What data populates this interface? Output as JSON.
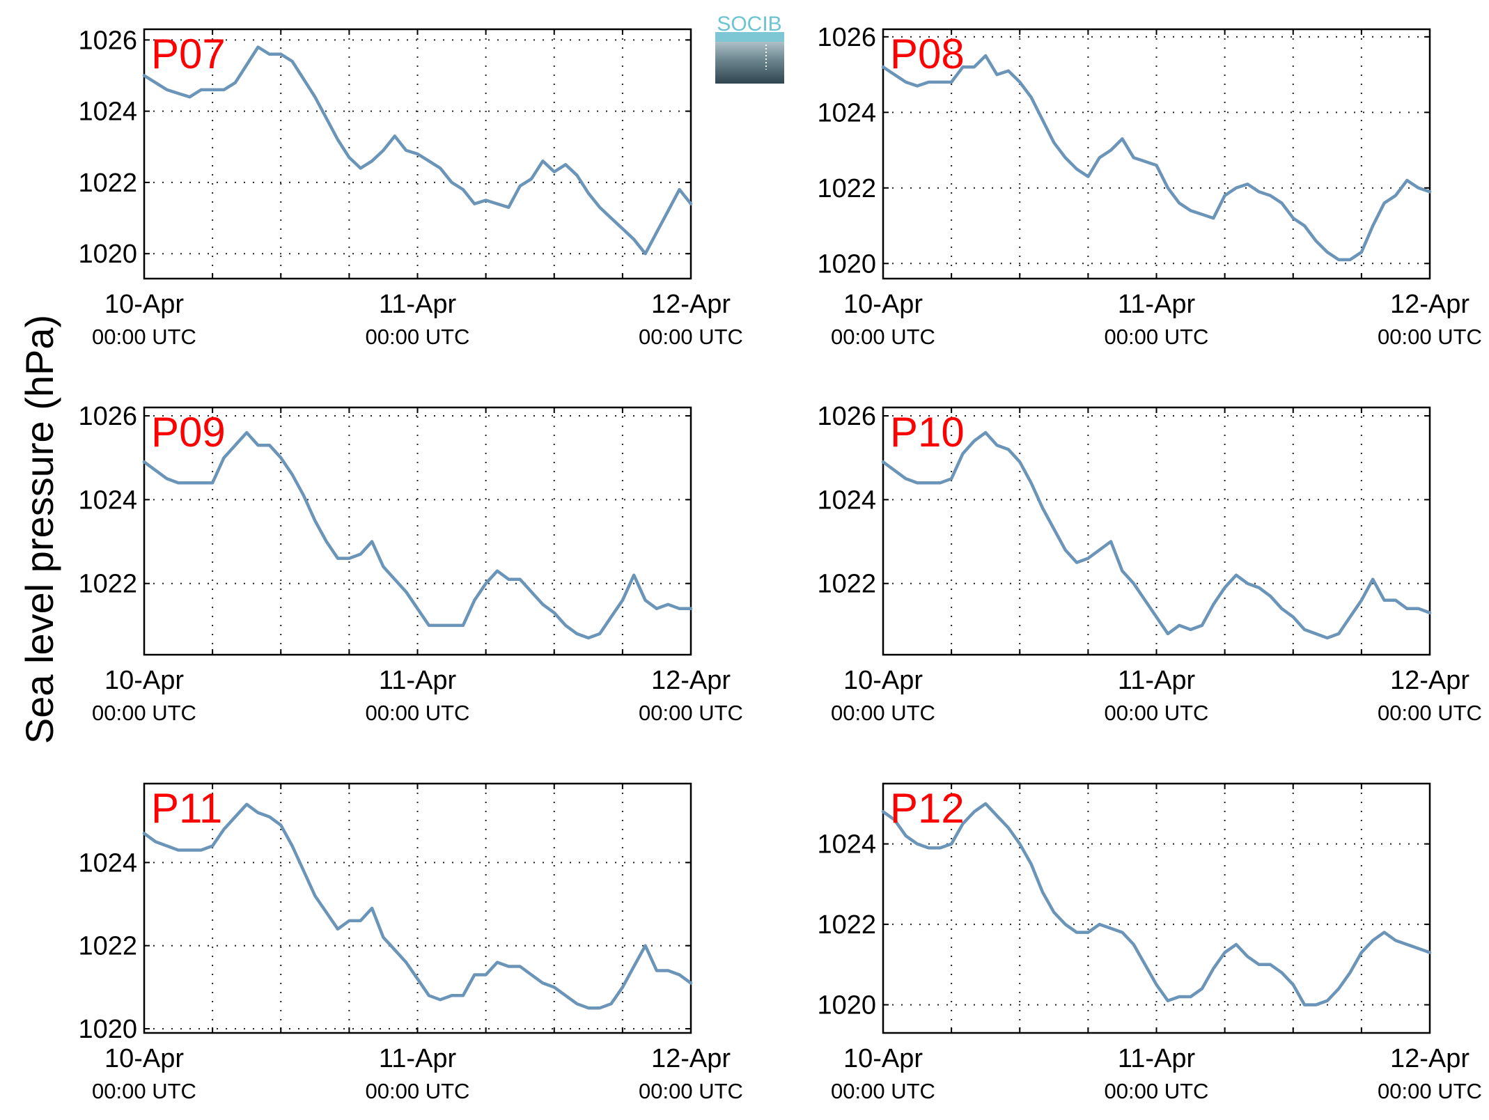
{
  "figure": {
    "ylabel": "Sea level pressure (hPa)",
    "logo": "SOCIB",
    "line_color": "#6b95b8",
    "title_color": "#ff0000"
  },
  "chart_data": [
    {
      "type": "line",
      "title": "P07",
      "ylim": [
        1019.3,
        1026.3
      ],
      "yticks": [
        1020,
        1022,
        1024,
        1026
      ],
      "xlim": [
        0,
        48
      ],
      "xticks": [
        {
          "value": 0,
          "label": "10-Apr",
          "sublabel": "00:00 UTC"
        },
        {
          "value": 24,
          "label": "11-Apr",
          "sublabel": "00:00 UTC"
        },
        {
          "value": 48,
          "label": "12-Apr",
          "sublabel": "00:00 UTC"
        }
      ],
      "grid": true,
      "series": [
        {
          "x": [
            0,
            1,
            2,
            3,
            4,
            5,
            6,
            7,
            8,
            9,
            10,
            11,
            12,
            13,
            14,
            15,
            16,
            17,
            18,
            19,
            20,
            21,
            22,
            23,
            24,
            25,
            26,
            27,
            28,
            29,
            30,
            31,
            32,
            33,
            34,
            35,
            36,
            37,
            38,
            39,
            40,
            41,
            42,
            43,
            44,
            45,
            46,
            47,
            48
          ],
          "values": [
            1025.0,
            1024.8,
            1024.6,
            1024.5,
            1024.4,
            1024.6,
            1024.6,
            1024.6,
            1024.8,
            1025.3,
            1025.8,
            1025.6,
            1025.6,
            1025.4,
            1024.9,
            1024.4,
            1023.8,
            1023.2,
            1022.7,
            1022.4,
            1022.6,
            1022.9,
            1023.3,
            1022.9,
            1022.8,
            1022.6,
            1022.4,
            1022.0,
            1021.8,
            1021.4,
            1021.5,
            1021.4,
            1021.3,
            1021.9,
            1022.1,
            1022.6,
            1022.3,
            1022.5,
            1022.2,
            1021.7,
            1021.3,
            1021.0,
            1020.7,
            1020.4,
            1020.0,
            1020.6,
            1021.2,
            1021.8,
            1021.4
          ]
        }
      ]
    },
    {
      "type": "line",
      "title": "P08",
      "ylim": [
        1019.6,
        1026.2
      ],
      "yticks": [
        1020,
        1022,
        1024,
        1026
      ],
      "xlim": [
        0,
        48
      ],
      "xticks": [
        {
          "value": 0,
          "label": "10-Apr",
          "sublabel": "00:00 UTC"
        },
        {
          "value": 24,
          "label": "11-Apr",
          "sublabel": "00:00 UTC"
        },
        {
          "value": 48,
          "label": "12-Apr",
          "sublabel": "00:00 UTC"
        }
      ],
      "grid": true,
      "series": [
        {
          "x": [
            0,
            1,
            2,
            3,
            4,
            5,
            6,
            7,
            8,
            9,
            10,
            11,
            12,
            13,
            14,
            15,
            16,
            17,
            18,
            19,
            20,
            21,
            22,
            23,
            24,
            25,
            26,
            27,
            28,
            29,
            30,
            31,
            32,
            33,
            34,
            35,
            36,
            37,
            38,
            39,
            40,
            41,
            42,
            43,
            44,
            45,
            46,
            47,
            48
          ],
          "values": [
            1025.2,
            1025.0,
            1024.8,
            1024.7,
            1024.8,
            1024.8,
            1024.8,
            1025.2,
            1025.2,
            1025.5,
            1025.0,
            1025.1,
            1024.8,
            1024.4,
            1023.8,
            1023.2,
            1022.8,
            1022.5,
            1022.3,
            1022.8,
            1023.0,
            1023.3,
            1022.8,
            1022.7,
            1022.6,
            1022.0,
            1021.6,
            1021.4,
            1021.3,
            1021.2,
            1021.8,
            1022.0,
            1022.1,
            1021.9,
            1021.8,
            1021.6,
            1021.2,
            1021.0,
            1020.6,
            1020.3,
            1020.1,
            1020.1,
            1020.3,
            1021.0,
            1021.6,
            1021.8,
            1022.2,
            1022.0,
            1021.9
          ]
        }
      ]
    },
    {
      "type": "line",
      "title": "P09",
      "ylim": [
        1020.3,
        1026.2
      ],
      "yticks": [
        1022,
        1024,
        1026
      ],
      "xlim": [
        0,
        48
      ],
      "xticks": [
        {
          "value": 0,
          "label": "10-Apr",
          "sublabel": "00:00 UTC"
        },
        {
          "value": 24,
          "label": "11-Apr",
          "sublabel": "00:00 UTC"
        },
        {
          "value": 48,
          "label": "12-Apr",
          "sublabel": "00:00 UTC"
        }
      ],
      "grid": true,
      "series": [
        {
          "x": [
            0,
            1,
            2,
            3,
            4,
            5,
            6,
            7,
            8,
            9,
            10,
            11,
            12,
            13,
            14,
            15,
            16,
            17,
            18,
            19,
            20,
            21,
            22,
            23,
            24,
            25,
            26,
            27,
            28,
            29,
            30,
            31,
            32,
            33,
            34,
            35,
            36,
            37,
            38,
            39,
            40,
            41,
            42,
            43,
            44,
            45,
            46,
            47,
            48
          ],
          "values": [
            1024.9,
            1024.7,
            1024.5,
            1024.4,
            1024.4,
            1024.4,
            1024.4,
            1025.0,
            1025.3,
            1025.6,
            1025.3,
            1025.3,
            1025.0,
            1024.6,
            1024.1,
            1023.5,
            1023.0,
            1022.6,
            1022.6,
            1022.7,
            1023.0,
            1022.4,
            1022.1,
            1021.8,
            1021.4,
            1021.0,
            1021.0,
            1021.0,
            1021.0,
            1021.6,
            1022.0,
            1022.3,
            1022.1,
            1022.1,
            1021.8,
            1021.5,
            1021.3,
            1021.0,
            1020.8,
            1020.7,
            1020.8,
            1021.2,
            1021.6,
            1022.2,
            1021.6,
            1021.4,
            1021.5,
            1021.4,
            1021.4
          ]
        }
      ]
    },
    {
      "type": "line",
      "title": "P10",
      "ylim": [
        1020.3,
        1026.2
      ],
      "yticks": [
        1022,
        1024,
        1026
      ],
      "xlim": [
        0,
        48
      ],
      "xticks": [
        {
          "value": 0,
          "label": "10-Apr",
          "sublabel": "00:00 UTC"
        },
        {
          "value": 24,
          "label": "11-Apr",
          "sublabel": "00:00 UTC"
        },
        {
          "value": 48,
          "label": "12-Apr",
          "sublabel": "00:00 UTC"
        }
      ],
      "grid": true,
      "series": [
        {
          "x": [
            0,
            1,
            2,
            3,
            4,
            5,
            6,
            7,
            8,
            9,
            10,
            11,
            12,
            13,
            14,
            15,
            16,
            17,
            18,
            19,
            20,
            21,
            22,
            23,
            24,
            25,
            26,
            27,
            28,
            29,
            30,
            31,
            32,
            33,
            34,
            35,
            36,
            37,
            38,
            39,
            40,
            41,
            42,
            43,
            44,
            45,
            46,
            47,
            48
          ],
          "values": [
            1024.9,
            1024.7,
            1024.5,
            1024.4,
            1024.4,
            1024.4,
            1024.5,
            1025.1,
            1025.4,
            1025.6,
            1025.3,
            1025.2,
            1024.9,
            1024.4,
            1023.8,
            1023.3,
            1022.8,
            1022.5,
            1022.6,
            1022.8,
            1023.0,
            1022.3,
            1022.0,
            1021.6,
            1021.2,
            1020.8,
            1021.0,
            1020.9,
            1021.0,
            1021.5,
            1021.9,
            1022.2,
            1022.0,
            1021.9,
            1021.7,
            1021.4,
            1021.2,
            1020.9,
            1020.8,
            1020.7,
            1020.8,
            1021.2,
            1021.6,
            1022.1,
            1021.6,
            1021.6,
            1021.4,
            1021.4,
            1021.3
          ]
        }
      ]
    },
    {
      "type": "line",
      "title": "P11",
      "ylim": [
        1019.9,
        1025.9
      ],
      "yticks": [
        1020,
        1022,
        1024
      ],
      "xlim": [
        0,
        48
      ],
      "xticks": [
        {
          "value": 0,
          "label": "10-Apr",
          "sublabel": "00:00 UTC"
        },
        {
          "value": 24,
          "label": "11-Apr",
          "sublabel": "00:00 UTC"
        },
        {
          "value": 48,
          "label": "12-Apr",
          "sublabel": "00:00 UTC"
        }
      ],
      "grid": true,
      "series": [
        {
          "x": [
            0,
            1,
            2,
            3,
            4,
            5,
            6,
            7,
            8,
            9,
            10,
            11,
            12,
            13,
            14,
            15,
            16,
            17,
            18,
            19,
            20,
            21,
            22,
            23,
            24,
            25,
            26,
            27,
            28,
            29,
            30,
            31,
            32,
            33,
            34,
            35,
            36,
            37,
            38,
            39,
            40,
            41,
            42,
            43,
            44,
            45,
            46,
            47,
            48
          ],
          "values": [
            1024.7,
            1024.5,
            1024.4,
            1024.3,
            1024.3,
            1024.3,
            1024.4,
            1024.8,
            1025.1,
            1025.4,
            1025.2,
            1025.1,
            1024.9,
            1024.4,
            1023.8,
            1023.2,
            1022.8,
            1022.4,
            1022.6,
            1022.6,
            1022.9,
            1022.2,
            1021.9,
            1021.6,
            1021.2,
            1020.8,
            1020.7,
            1020.8,
            1020.8,
            1021.3,
            1021.3,
            1021.6,
            1021.5,
            1021.5,
            1021.3,
            1021.1,
            1021.0,
            1020.8,
            1020.6,
            1020.5,
            1020.5,
            1020.6,
            1021.0,
            1021.5,
            1022.0,
            1021.4,
            1021.4,
            1021.3,
            1021.1
          ]
        }
      ]
    },
    {
      "type": "line",
      "title": "P12",
      "ylim": [
        1019.3,
        1025.5
      ],
      "yticks": [
        1020,
        1022,
        1024
      ],
      "xlim": [
        0,
        48
      ],
      "xticks": [
        {
          "value": 0,
          "label": "10-Apr",
          "sublabel": "00:00 UTC"
        },
        {
          "value": 24,
          "label": "11-Apr",
          "sublabel": "00:00 UTC"
        },
        {
          "value": 48,
          "label": "12-Apr",
          "sublabel": "00:00 UTC"
        }
      ],
      "grid": true,
      "series": [
        {
          "x": [
            0,
            1,
            2,
            3,
            4,
            5,
            6,
            7,
            8,
            9,
            10,
            11,
            12,
            13,
            14,
            15,
            16,
            17,
            18,
            19,
            20,
            21,
            22,
            23,
            24,
            25,
            26,
            27,
            28,
            29,
            30,
            31,
            32,
            33,
            34,
            35,
            36,
            37,
            38,
            39,
            40,
            41,
            42,
            43,
            44,
            45,
            46,
            47,
            48
          ],
          "values": [
            1024.8,
            1024.6,
            1024.2,
            1024.0,
            1023.9,
            1023.9,
            1024.0,
            1024.5,
            1024.8,
            1025.0,
            1024.7,
            1024.4,
            1024.0,
            1023.5,
            1022.8,
            1022.3,
            1022.0,
            1021.8,
            1021.8,
            1022.0,
            1021.9,
            1021.8,
            1021.5,
            1021.0,
            1020.5,
            1020.1,
            1020.2,
            1020.2,
            1020.4,
            1020.9,
            1021.3,
            1021.5,
            1021.2,
            1021.0,
            1021.0,
            1020.8,
            1020.5,
            1020.0,
            1020.0,
            1020.1,
            1020.4,
            1020.8,
            1021.3,
            1021.6,
            1021.8,
            1021.6,
            1021.5,
            1021.4,
            1021.3
          ]
        }
      ]
    }
  ]
}
